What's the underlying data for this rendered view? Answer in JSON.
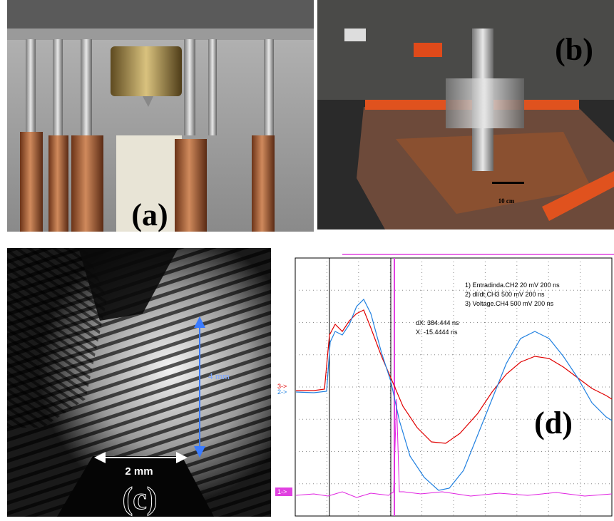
{
  "panels": {
    "a": {
      "label": "(a)"
    },
    "b": {
      "label": "(b)",
      "scale_label": "10 cm"
    },
    "c": {
      "label": "(c)",
      "height_label": "4 mm",
      "width_label": "2 mm"
    },
    "d": {
      "label": "(d)",
      "legend": [
        "1) Entradinda.CH2  20 mV    200 ns",
        "2) dI/dt.CH3  500 mV    200 ns",
        "3) Voltage.CH4  500 mV    200 ns"
      ],
      "cursor_dx": "dX: 384.444 ns",
      "cursor_x": "X: -15.4444 ns",
      "channel_markers": [
        "3->",
        "2->",
        "1->"
      ]
    }
  }
}
